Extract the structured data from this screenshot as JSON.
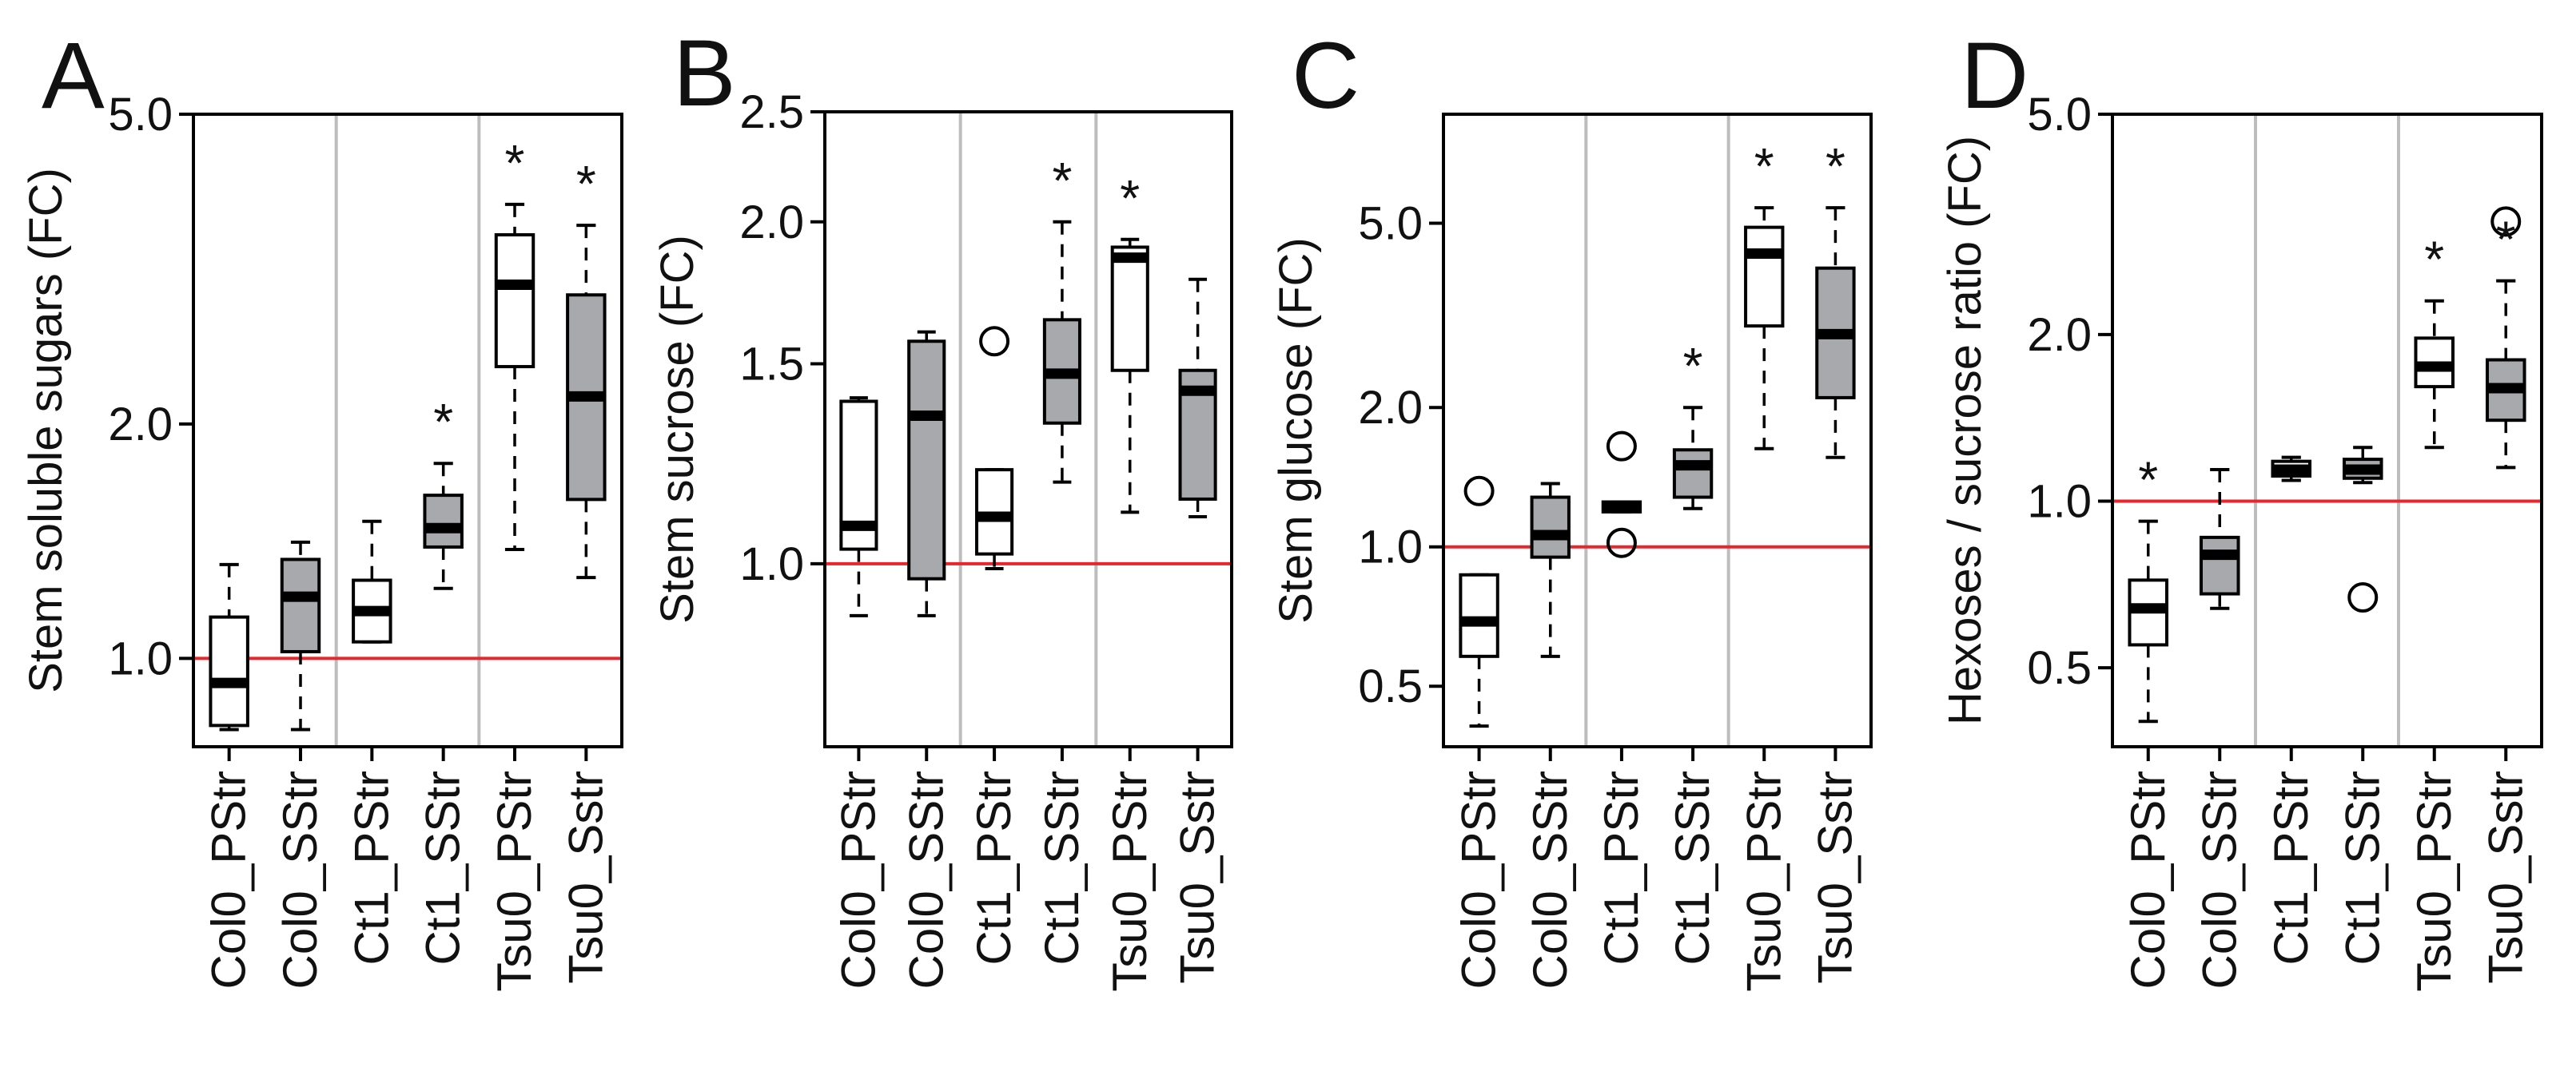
{
  "colors": {
    "reference_line": "#e8262b",
    "separator": "#bdbdbd",
    "box_primary": "#ffffff",
    "box_secondary": "#a7a9ac",
    "frame": "#000000"
  },
  "chart_data": [
    {
      "type": "boxplot",
      "panel_letter": "A",
      "ylabel": "Stem soluble sugars (FC)",
      "yscale": "log",
      "ylim": [
        0.77,
        5.0
      ],
      "yticks": [
        1.0,
        2.0,
        5.0
      ],
      "ytick_labels": [
        "1.0",
        "2.0",
        "5.0"
      ],
      "reference_line": 1.0,
      "categories": [
        "Col0_PStr",
        "Col0_SStr",
        "Ct1_PStr",
        "Ct1_SStr",
        "Tsu0_PStr",
        "Tsu0_Sstr"
      ],
      "fills": [
        "white",
        "gray",
        "white",
        "gray",
        "white",
        "gray"
      ],
      "stats": [
        {
          "lower": 0.81,
          "q1": 0.82,
          "median": 0.93,
          "q3": 1.13,
          "upper": 1.32
        },
        {
          "lower": 0.81,
          "q1": 1.02,
          "median": 1.2,
          "q3": 1.34,
          "upper": 1.41
        },
        {
          "lower": 1.05,
          "q1": 1.05,
          "median": 1.15,
          "q3": 1.26,
          "upper": 1.5
        },
        {
          "lower": 1.23,
          "q1": 1.39,
          "median": 1.47,
          "q3": 1.62,
          "upper": 1.78
        },
        {
          "lower": 1.38,
          "q1": 2.37,
          "median": 3.02,
          "q3": 3.5,
          "upper": 3.83
        },
        {
          "lower": 1.27,
          "q1": 1.6,
          "median": 2.17,
          "q3": 2.93,
          "upper": 3.6
        }
      ],
      "outliers": [
        [],
        [],
        [],
        [],
        [],
        []
      ],
      "significant": [
        false,
        false,
        false,
        true,
        true,
        true
      ],
      "significance_marker": "*"
    },
    {
      "type": "boxplot",
      "panel_letter": "B",
      "ylabel": "Stem sucrose (FC)",
      "yscale": "log",
      "ylim": [
        0.69,
        2.5
      ],
      "yticks": [
        1.0,
        1.5,
        2.0,
        2.5
      ],
      "ytick_labels": [
        "1.0",
        "1.5",
        "2.0",
        "2.5"
      ],
      "reference_line": 1.0,
      "categories": [
        "Col0_PStr",
        "Col0_SStr",
        "Ct1_PStr",
        "Ct1_SStr",
        "Tsu0_PStr",
        "Tsu0_Sstr"
      ],
      "fills": [
        "white",
        "gray",
        "white",
        "gray",
        "white",
        "gray"
      ],
      "stats": [
        {
          "lower": 0.9,
          "q1": 1.03,
          "median": 1.08,
          "q3": 1.39,
          "upper": 1.4
        },
        {
          "lower": 0.9,
          "q1": 0.97,
          "median": 1.35,
          "q3": 1.57,
          "upper": 1.6
        },
        {
          "lower": 0.99,
          "q1": 1.02,
          "median": 1.1,
          "q3": 1.21,
          "upper": 1.21
        },
        {
          "lower": 1.18,
          "q1": 1.33,
          "median": 1.47,
          "q3": 1.64,
          "upper": 2.0
        },
        {
          "lower": 1.11,
          "q1": 1.48,
          "median": 1.86,
          "q3": 1.9,
          "upper": 1.93
        },
        {
          "lower": 1.1,
          "q1": 1.14,
          "median": 1.42,
          "q3": 1.48,
          "upper": 1.78
        }
      ],
      "outliers": [
        [],
        [],
        [
          1.57
        ],
        [],
        [],
        []
      ],
      "significant": [
        false,
        false,
        false,
        true,
        true,
        false
      ],
      "significance_marker": "*"
    },
    {
      "type": "boxplot",
      "panel_letter": "C",
      "ylabel": "Stem  glucose (FC)",
      "yscale": "log",
      "ylim": [
        0.37,
        8.6
      ],
      "yticks": [
        0.5,
        1.0,
        2.0,
        5.0
      ],
      "ytick_labels": [
        "0.5",
        "1.0",
        "2.0",
        "5.0"
      ],
      "reference_line": 1.0,
      "categories": [
        "Col0_PStr",
        "Col0_SStr",
        "Ct1_PStr",
        "Ct1_SStr",
        "Tsu0_PStr",
        "Tsu0_Sstr"
      ],
      "fills": [
        "white",
        "gray",
        "white",
        "gray",
        "white",
        "gray"
      ],
      "stats": [
        {
          "lower": 0.41,
          "q1": 0.58,
          "median": 0.69,
          "q3": 0.87,
          "upper": 0.87
        },
        {
          "lower": 0.58,
          "q1": 0.95,
          "median": 1.06,
          "q3": 1.28,
          "upper": 1.37
        },
        {
          "lower": 1.19,
          "q1": 1.19,
          "median": 1.22,
          "q3": 1.25,
          "upper": 1.25
        },
        {
          "lower": 1.21,
          "q1": 1.28,
          "median": 1.5,
          "q3": 1.62,
          "upper": 2.0
        },
        {
          "lower": 1.63,
          "q1": 3.0,
          "median": 4.3,
          "q3": 4.9,
          "upper": 5.4
        },
        {
          "lower": 1.56,
          "q1": 2.1,
          "median": 2.88,
          "q3": 4.0,
          "upper": 5.4
        }
      ],
      "outliers": [
        [
          1.32
        ],
        [],
        [
          1.65,
          1.02
        ],
        [],
        [],
        []
      ],
      "significant": [
        false,
        false,
        false,
        true,
        true,
        true
      ],
      "significance_marker": "*"
    },
    {
      "type": "boxplot",
      "panel_letter": "D",
      "ylabel": "Hexoses / sucrose ratio (FC)",
      "yscale": "log",
      "ylim": [
        0.36,
        5.0
      ],
      "yticks": [
        0.5,
        1.0,
        2.0,
        5.0
      ],
      "ytick_labels": [
        "0.5",
        "1.0",
        "2.0",
        "5.0"
      ],
      "reference_line": 1.0,
      "categories": [
        "Col0_PStr",
        "Col0_SStr",
        "Ct1_PStr",
        "Ct1_SStr",
        "Tsu0_PStr",
        "Tsu0_Sstr"
      ],
      "fills": [
        "white",
        "gray",
        "white",
        "gray",
        "white",
        "gray"
      ],
      "stats": [
        {
          "lower": 0.4,
          "q1": 0.55,
          "median": 0.64,
          "q3": 0.72,
          "upper": 0.92
        },
        {
          "lower": 0.64,
          "q1": 0.68,
          "median": 0.8,
          "q3": 0.86,
          "upper": 1.14
        },
        {
          "lower": 1.09,
          "q1": 1.11,
          "median": 1.14,
          "q3": 1.18,
          "upper": 1.2
        },
        {
          "lower": 1.08,
          "q1": 1.1,
          "median": 1.14,
          "q3": 1.19,
          "upper": 1.25
        },
        {
          "lower": 1.25,
          "q1": 1.61,
          "median": 1.75,
          "q3": 1.97,
          "upper": 2.3
        },
        {
          "lower": 1.15,
          "q1": 1.4,
          "median": 1.6,
          "q3": 1.8,
          "upper": 2.5
        }
      ],
      "outliers": [
        [],
        [],
        [],
        [
          0.67
        ],
        [],
        [
          3.2
        ]
      ],
      "significant": [
        true,
        false,
        false,
        false,
        true,
        true
      ],
      "significance_marker": "*"
    }
  ]
}
